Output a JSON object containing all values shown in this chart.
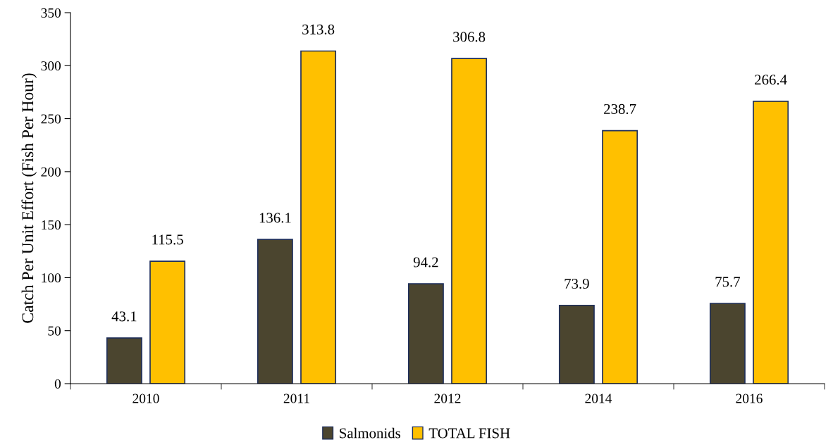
{
  "chart_data": {
    "type": "bar",
    "ylabel": "Catch Per Unit Effort (Fish Per Hour)",
    "categories": [
      "2010",
      "2011",
      "2012",
      "2014",
      "2016"
    ],
    "series": [
      {
        "name": "Salmonids",
        "color": "#4b452f",
        "values": [
          43.1,
          136.1,
          94.2,
          73.9,
          75.7
        ]
      },
      {
        "name": "TOTAL FISH",
        "color": "#ffc000",
        "values": [
          115.5,
          313.8,
          306.8,
          238.7,
          266.4
        ]
      }
    ],
    "ylim": [
      0,
      350
    ],
    "yticks": [
      0,
      50,
      100,
      150,
      200,
      250,
      300,
      350
    ],
    "data_labels": true,
    "grid": false,
    "legend": "bottom"
  }
}
